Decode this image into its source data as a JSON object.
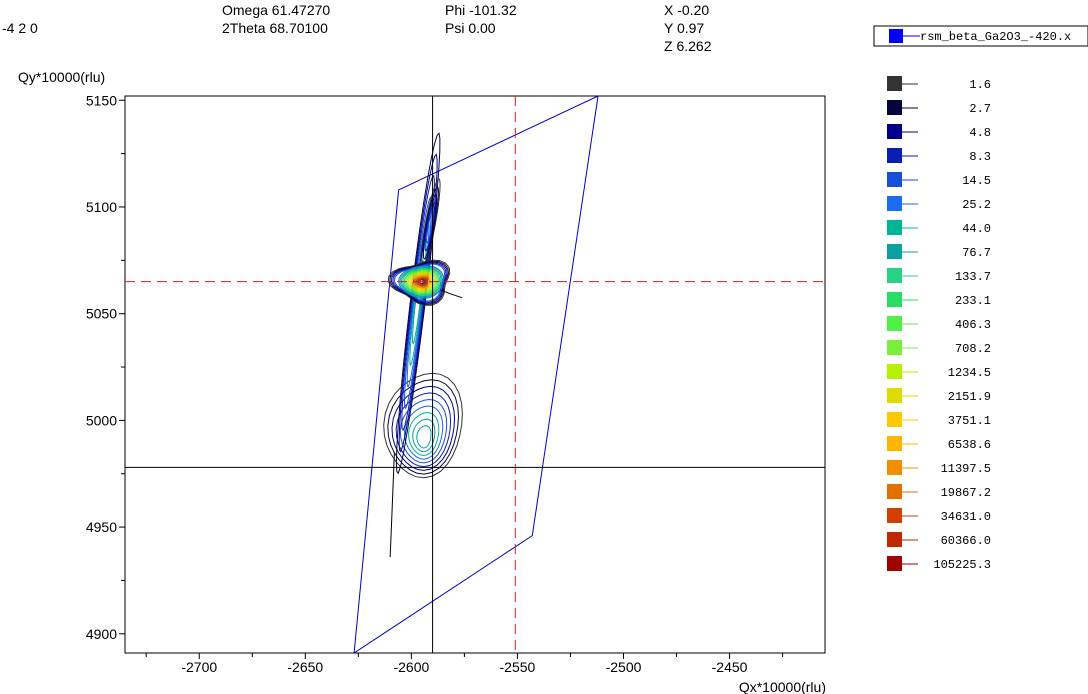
{
  "header": {
    "hkl": "-4 2 0",
    "omega": "Omega 61.47270",
    "two_theta": "2Theta 68.70100",
    "phi": "Phi -101.32",
    "psi": "Psi 0.00",
    "x": "X -0.20",
    "y": "Y 0.97",
    "z": "Z 6.262"
  },
  "dataset_legend": {
    "label": "rsm_beta_Ga2O3_-420.x",
    "color": "#0000ff"
  },
  "chart_data": {
    "type": "contour",
    "xlabel": "Qx*10000(rlu)",
    "ylabel": "Qy*10000(rlu)",
    "xlim": [
      -2735,
      -2405
    ],
    "ylim": [
      4891,
      5152
    ],
    "xticks": [
      -2700,
      -2650,
      -2600,
      -2550,
      -2500,
      -2450
    ],
    "yticks": [
      4900,
      4950,
      5000,
      5050,
      5100,
      5150
    ],
    "cursor": {
      "x": -2590,
      "y": 4978,
      "color": "#000000"
    },
    "reference": {
      "x": -2551,
      "y": 5065,
      "color": "#d02020"
    },
    "scan_boundary": [
      [
        -2606,
        5108
      ],
      [
        -2512,
        5152
      ],
      [
        -2543,
        4946
      ],
      [
        -2627,
        4891
      ]
    ],
    "peak": {
      "x": -2595,
      "y": 5065
    },
    "contour_levels": [
      {
        "value": "1.6",
        "color": "#333333"
      },
      {
        "value": "2.7",
        "color": "#05053c"
      },
      {
        "value": "4.8",
        "color": "#00008c"
      },
      {
        "value": "8.3",
        "color": "#0a1eb4"
      },
      {
        "value": "14.5",
        "color": "#1450dc"
      },
      {
        "value": "25.2",
        "color": "#1a6cf0"
      },
      {
        "value": "44.0",
        "color": "#00b496"
      },
      {
        "value": "76.7",
        "color": "#0aa0a0"
      },
      {
        "value": "133.7",
        "color": "#28d282"
      },
      {
        "value": "233.1",
        "color": "#28dc64"
      },
      {
        "value": "406.3",
        "color": "#50f046"
      },
      {
        "value": "708.2",
        "color": "#78f03c"
      },
      {
        "value": "1234.5",
        "color": "#b4f000"
      },
      {
        "value": "2151.9",
        "color": "#dcdc00"
      },
      {
        "value": "3751.1",
        "color": "#ffc800"
      },
      {
        "value": "6538.6",
        "color": "#ffb400"
      },
      {
        "value": "11397.5",
        "color": "#f09000"
      },
      {
        "value": "19867.2",
        "color": "#e07000"
      },
      {
        "value": "34631.0",
        "color": "#d04000"
      },
      {
        "value": "60366.0",
        "color": "#c02800"
      },
      {
        "value": "105225.3",
        "color": "#a00000"
      }
    ]
  }
}
